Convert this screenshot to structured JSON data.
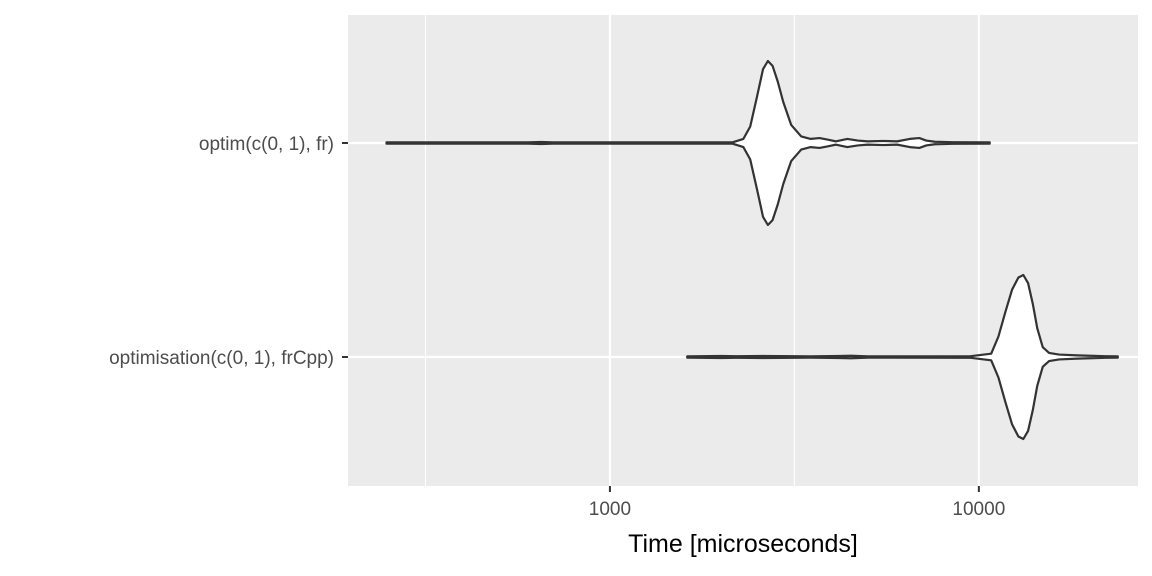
{
  "chart_data": {
    "type": "violin",
    "orientation": "horizontal",
    "xscale": "log10",
    "xlabel": "Time [microseconds]",
    "ylabel": "",
    "xlim": [
      195,
      27000
    ],
    "x_major_ticks": [
      1000,
      10000
    ],
    "x_tick_labels": [
      "1000",
      "10000"
    ],
    "x_minor_ticks": [
      316.23,
      3162.3
    ],
    "grid": true,
    "colors": {
      "panel_background": "#ebebeb",
      "grid": "#ffffff",
      "violin_fill": "#ffffff",
      "violin_stroke": "#333333",
      "tick_label": "#4d4d4d",
      "axis_title": "#000000"
    },
    "categories": [
      "optim(c(0, 1), fr)",
      "optimisation(c(0, 1), frCpp)"
    ],
    "series": [
      {
        "name": "optim(c(0, 1), fr)",
        "min": 248,
        "max": 10700,
        "density": [
          [
            248,
            0.008
          ],
          [
            600,
            0.008
          ],
          [
            650,
            0.012
          ],
          [
            700,
            0.008
          ],
          [
            2150,
            0.008
          ],
          [
            2300,
            0.05
          ],
          [
            2400,
            0.2
          ],
          [
            2500,
            0.55
          ],
          [
            2600,
            0.9
          ],
          [
            2680,
            1.0
          ],
          [
            2760,
            0.94
          ],
          [
            2850,
            0.75
          ],
          [
            2950,
            0.5
          ],
          [
            3100,
            0.22
          ],
          [
            3300,
            0.08
          ],
          [
            3500,
            0.05
          ],
          [
            3700,
            0.06
          ],
          [
            3900,
            0.04
          ],
          [
            4100,
            0.02
          ],
          [
            4400,
            0.05
          ],
          [
            4700,
            0.03
          ],
          [
            5000,
            0.02
          ],
          [
            5500,
            0.025
          ],
          [
            6000,
            0.02
          ],
          [
            6500,
            0.05
          ],
          [
            6900,
            0.06
          ],
          [
            7200,
            0.03
          ],
          [
            7600,
            0.015
          ],
          [
            8500,
            0.01
          ],
          [
            10700,
            0.008
          ]
        ]
      },
      {
        "name": "optimisation(c(0, 1), frCpp)",
        "min": 1620,
        "max": 23800,
        "density": [
          [
            1620,
            0.008
          ],
          [
            2000,
            0.012
          ],
          [
            2200,
            0.01
          ],
          [
            2600,
            0.012
          ],
          [
            3500,
            0.008
          ],
          [
            4200,
            0.012
          ],
          [
            4500,
            0.015
          ],
          [
            5000,
            0.008
          ],
          [
            9500,
            0.01
          ],
          [
            10800,
            0.04
          ],
          [
            11300,
            0.25
          ],
          [
            11800,
            0.55
          ],
          [
            12300,
            0.82
          ],
          [
            12800,
            0.97
          ],
          [
            13200,
            1.0
          ],
          [
            13600,
            0.9
          ],
          [
            14000,
            0.65
          ],
          [
            14400,
            0.35
          ],
          [
            14900,
            0.12
          ],
          [
            15500,
            0.05
          ],
          [
            16500,
            0.03
          ],
          [
            18500,
            0.02
          ],
          [
            20000,
            0.015
          ],
          [
            22000,
            0.01
          ],
          [
            23800,
            0.008
          ]
        ]
      }
    ]
  }
}
